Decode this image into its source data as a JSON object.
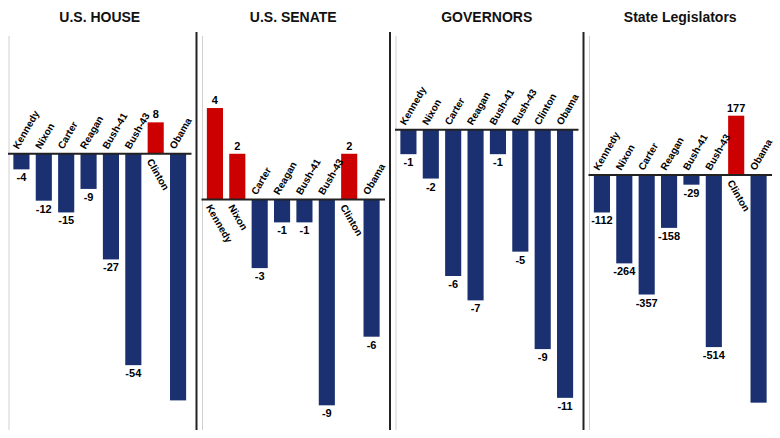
{
  "chart_data": [
    {
      "type": "bar",
      "title": "U.S. HOUSE",
      "categories": [
        "Kennedy",
        "Nixon",
        "Carter",
        "Reagan",
        "Bush-41",
        "Bush-43",
        "Clinton",
        "Obama"
      ],
      "values": [
        -4,
        -12,
        -15,
        -9,
        -27,
        -54,
        8,
        -63
      ],
      "value_labels": [
        "-4",
        "-12",
        "-15",
        "-9",
        "-27",
        "-54",
        "8",
        null
      ],
      "colors": [
        "#1a3070",
        "#1a3070",
        "#1a3070",
        "#1a3070",
        "#1a3070",
        "#1a3070",
        "#cc0000",
        "#1a3070"
      ],
      "ylim": [
        -70.56,
        30.05
      ],
      "data_labels": true,
      "tick_labels": "x",
      "grid": false
    },
    {
      "type": "bar",
      "title": "U.S. SENATE",
      "categories": [
        "Kennedy",
        "Nixon",
        "Carter",
        "Reagan",
        "Bush-41",
        "Bush-43",
        "Clinton",
        "Obama"
      ],
      "values": [
        4,
        2,
        -3,
        -1,
        -1,
        -9,
        2,
        -6
      ],
      "colors": [
        "#cc0000",
        "#cc0000",
        "#1a3070",
        "#1a3070",
        "#1a3070",
        "#1a3070",
        "#cc0000",
        "#1a3070"
      ],
      "ylim": [
        -10.08,
        7.15
      ],
      "data_labels": true,
      "tick_labels": "x",
      "grid": false
    },
    {
      "type": "bar",
      "title": "GOVERNORS",
      "categories": [
        "Kennedy",
        "Nixon",
        "Carter",
        "Reagan",
        "Bush-41",
        "Bush-43",
        "Clinton",
        "Obama"
      ],
      "values": [
        -1,
        -2,
        -6,
        -7,
        -1,
        -5,
        -9,
        -11
      ],
      "colors": [
        "#1a3070",
        "#1a3070",
        "#1a3070",
        "#1a3070",
        "#1a3070",
        "#1a3070",
        "#1a3070",
        "#1a3070"
      ],
      "ylim": [
        -12.32,
        3.85
      ],
      "data_labels": true,
      "tick_labels": "x",
      "grid": false
    },
    {
      "type": "bar",
      "title": "State Legislators",
      "categories": [
        "Kennedy",
        "Nixon",
        "Carter",
        "Reagan",
        "Bush-41",
        "Bush-43",
        "Clinton",
        "Obama"
      ],
      "values": [
        -112,
        -264,
        -357,
        -158,
        -29,
        -514,
        177,
        -680
      ],
      "value_labels": [
        "-112",
        "-264",
        "-357",
        "-158",
        "-29",
        "-514",
        "177",
        null
      ],
      "colors": [
        "#1a3070",
        "#1a3070",
        "#1a3070",
        "#1a3070",
        "#1a3070",
        "#1a3070",
        "#cc0000",
        "#1a3070"
      ],
      "ylim": [
        -761.6,
        415
      ],
      "data_labels": true,
      "tick_labels": "x",
      "grid": false
    }
  ]
}
